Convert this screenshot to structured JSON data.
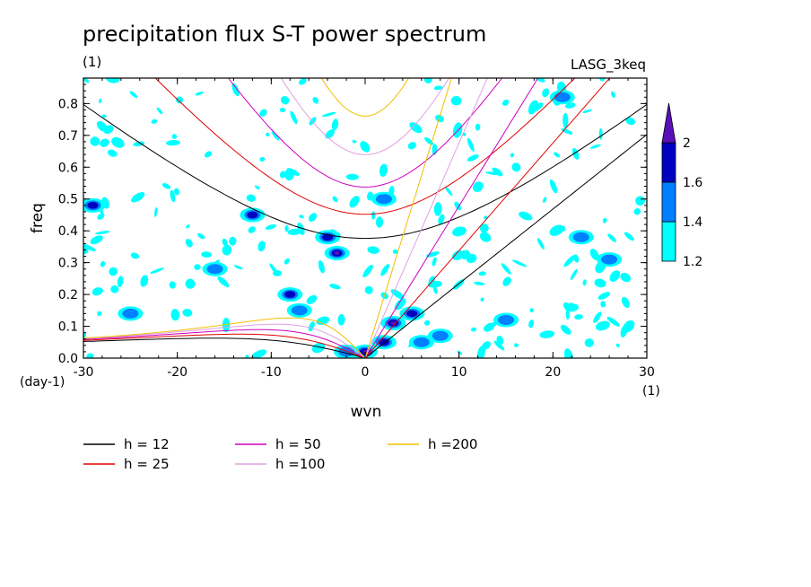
{
  "chart_data": {
    "type": "contour",
    "title": "precipitation flux S-T power spectrum",
    "subtitle_left": "(1)",
    "subtitle_right": "LASG_3keq",
    "xlabel": "wvn",
    "ylabel": "freq",
    "x_unit": "(1)",
    "y_unit": "(day-1)",
    "xlim": [
      -30,
      30
    ],
    "ylim": [
      0,
      0.88
    ],
    "x_ticks": [
      -30,
      -20,
      -10,
      0,
      10,
      20,
      30
    ],
    "x_tick_labels": [
      "-30",
      "-20",
      "-10",
      "0",
      "10",
      "20",
      "30"
    ],
    "y_ticks": [
      0,
      0.1,
      0.2,
      0.3,
      0.4,
      0.5,
      0.6,
      0.7,
      0.8
    ],
    "y_tick_labels": [
      "0.0",
      "0.1",
      "0.2",
      "0.3",
      "0.4",
      "0.5",
      "0.6",
      "0.7",
      "0.8"
    ],
    "colorbar": {
      "levels": [
        1.2,
        1.4,
        1.6,
        2
      ],
      "level_labels": [
        "1.2",
        "1.4",
        "1.6",
        "2"
      ],
      "colors": [
        "#00ffff",
        "#0080ff",
        "#0000c0",
        "#5a10b8"
      ]
    },
    "dispersion_curves": [
      {
        "name": "h = 12",
        "h": 12,
        "color": "#000000"
      },
      {
        "name": "h = 25",
        "h": 25,
        "color": "#e00000"
      },
      {
        "name": "h = 50",
        "h": 50,
        "color": "#d000c0"
      },
      {
        "name": "h =100",
        "h": 100,
        "color": "#e0a0e0"
      },
      {
        "name": "h =200",
        "h": 200,
        "color": "#f0c000"
      }
    ],
    "spectral_peaks": [
      {
        "x": -3,
        "y": 0.33,
        "level": 2
      },
      {
        "x": -4,
        "y": 0.38,
        "level": 1.6
      },
      {
        "x": -8,
        "y": 0.2,
        "level": 1.6
      },
      {
        "x": -7,
        "y": 0.15,
        "level": 1.4
      },
      {
        "x": 3,
        "y": 0.11,
        "level": 2
      },
      {
        "x": 5,
        "y": 0.14,
        "level": 1.6
      },
      {
        "x": 2,
        "y": 0.05,
        "level": 1.6
      },
      {
        "x": 0,
        "y": 0.02,
        "level": 2
      },
      {
        "x": -2,
        "y": 0.02,
        "level": 1.4
      },
      {
        "x": -29,
        "y": 0.48,
        "level": 1.6
      },
      {
        "x": -12,
        "y": 0.45,
        "level": 1.6
      },
      {
        "x": -16,
        "y": 0.28,
        "level": 1.4
      },
      {
        "x": 8,
        "y": 0.07,
        "level": 1.4
      },
      {
        "x": 6,
        "y": 0.05,
        "level": 1.4
      },
      {
        "x": 23,
        "y": 0.38,
        "level": 1.4
      },
      {
        "x": 15,
        "y": 0.12,
        "level": 1.4
      },
      {
        "x": 21,
        "y": 0.82,
        "level": 1.4
      },
      {
        "x": 26,
        "y": 0.31,
        "level": 1.4
      },
      {
        "x": -25,
        "y": 0.14,
        "level": 1.4
      },
      {
        "x": 2,
        "y": 0.5,
        "level": 1.4
      }
    ]
  }
}
